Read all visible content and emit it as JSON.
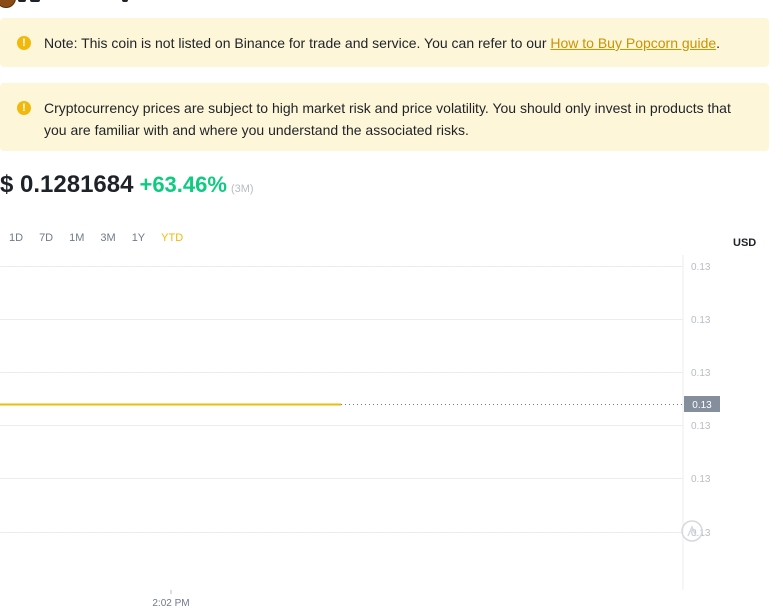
{
  "notices": {
    "listing": {
      "text": "Note: This coin is not listed on Binance for trade and service. You can refer to our ",
      "link": "How to Buy Popcorn guide",
      "suffix": "."
    },
    "risk": {
      "text": "Cryptocurrency prices are subject to high market risk and price volatility. You should only invest in products that you are familiar with and where you understand the associated risks."
    }
  },
  "price": {
    "value": "$ 0.1281684",
    "change": "+63.46%",
    "period": "(3M)"
  },
  "timeframes": [
    "1D",
    "7D",
    "1M",
    "3M",
    "1Y",
    "YTD"
  ],
  "active_timeframe": "YTD",
  "currency": "USD",
  "colors": {
    "accent": "#f0b90b",
    "positive": "#0ecb81",
    "notice_bg": "#fef6d8",
    "grid": "#eaecef"
  },
  "chart_data": {
    "type": "line",
    "series": [
      {
        "x": [
          "2:02 PM"
        ],
        "values": [
          0.13
        ]
      }
    ],
    "y_tick_labels": [
      "0.13",
      "0.13",
      "0.13",
      "0.13",
      "0.13",
      "0.13"
    ],
    "current_value_label": "0.13",
    "x_tick_labels": [
      "2:02 PM"
    ],
    "grid": true
  }
}
